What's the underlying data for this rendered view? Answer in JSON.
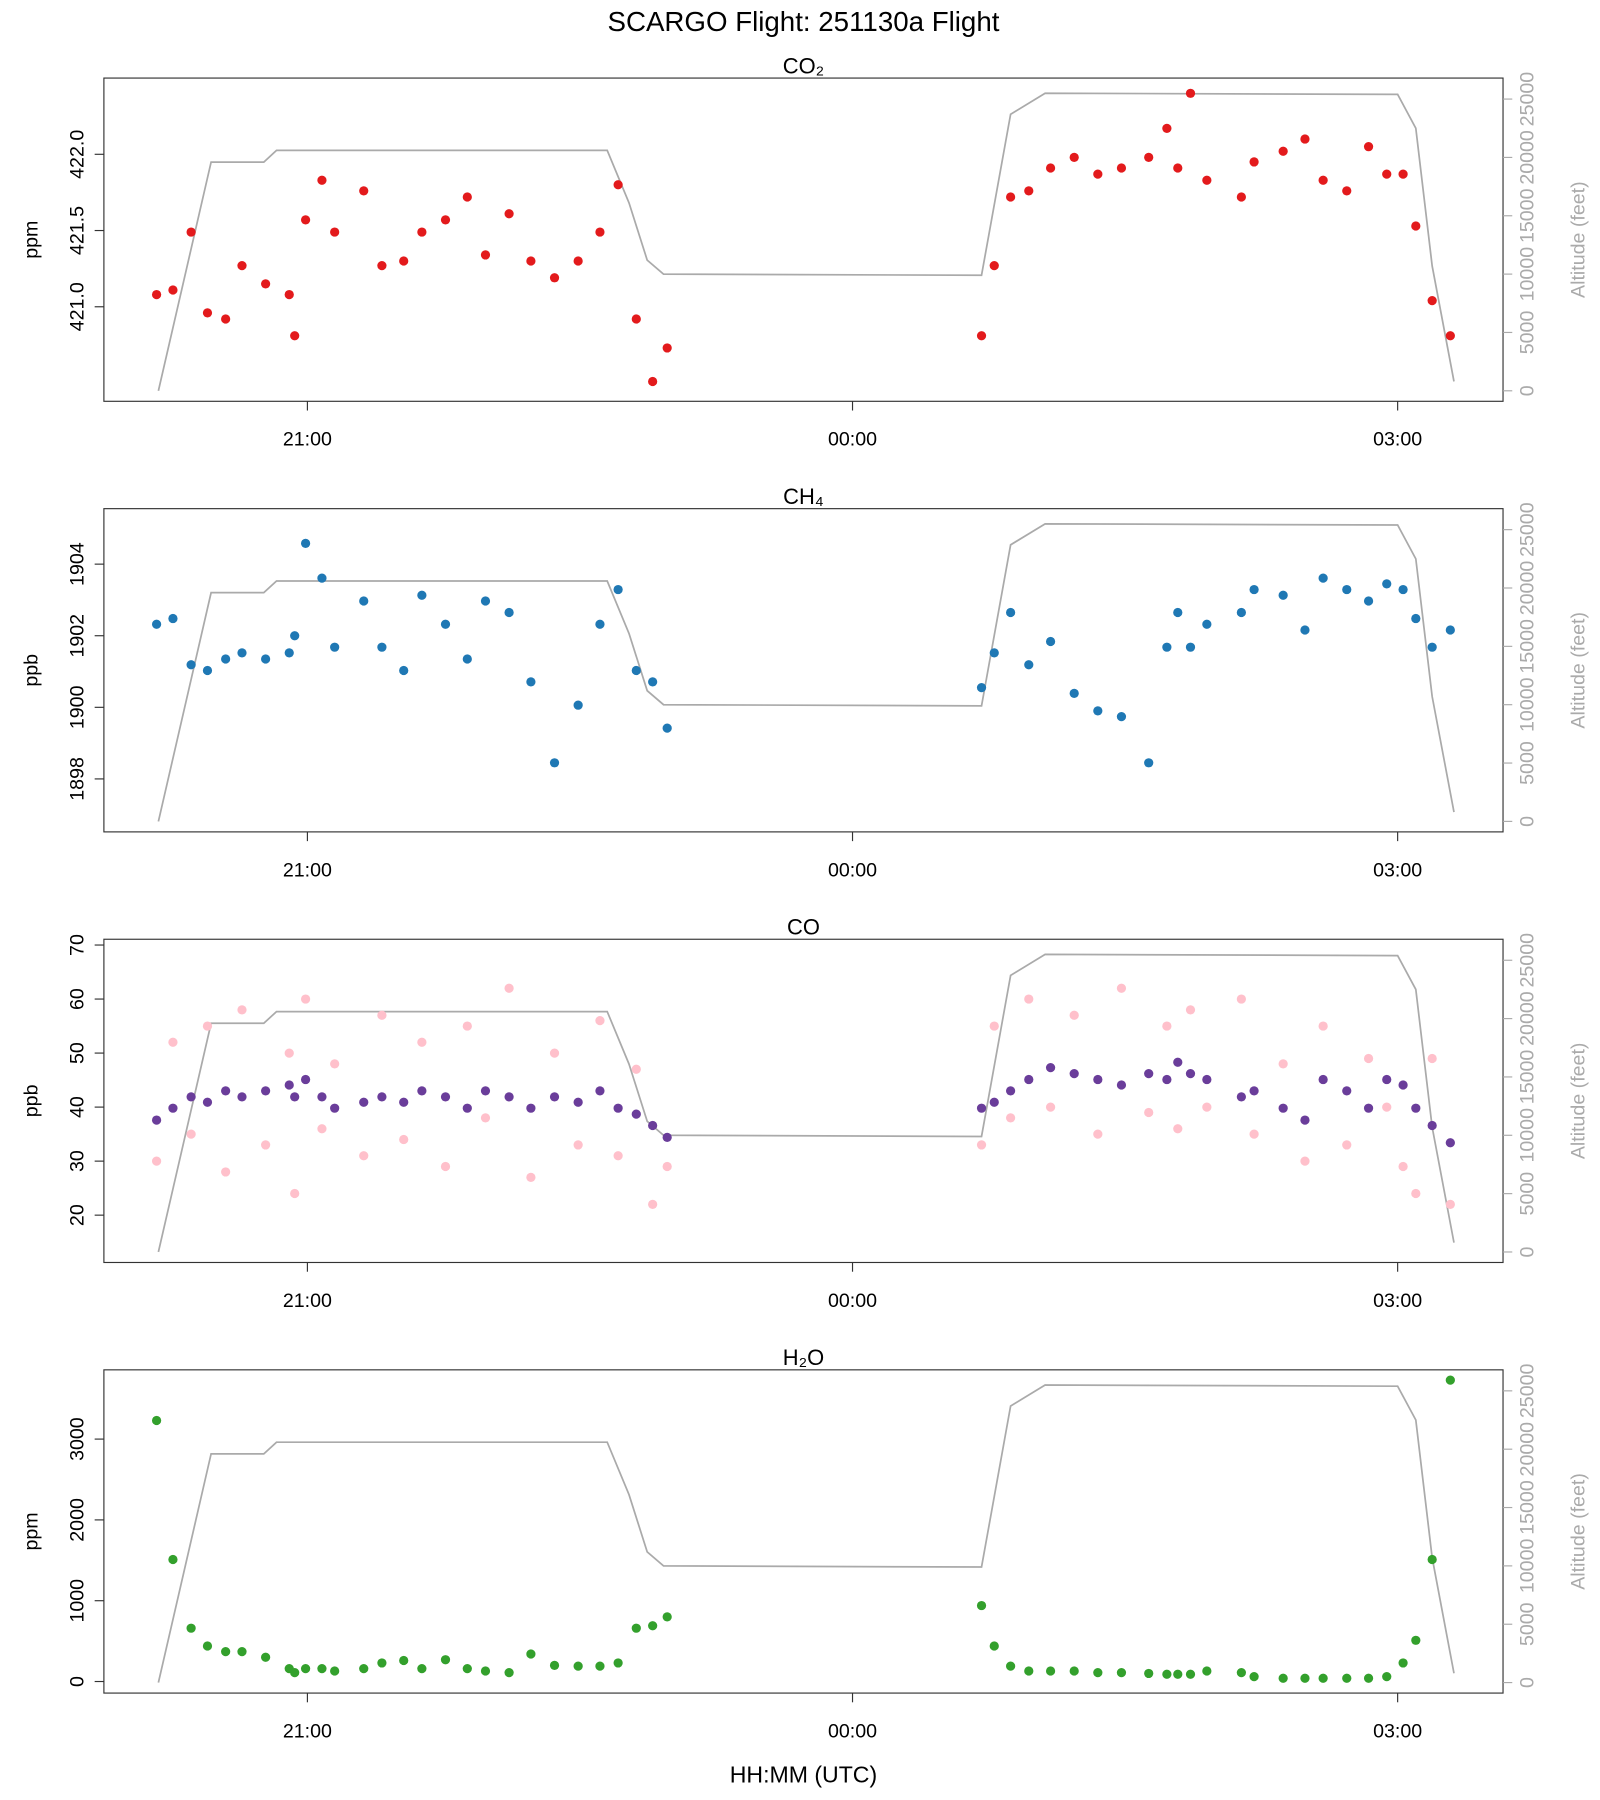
{
  "title": "SCARGO Flight: 251130a  Flight",
  "xlabel": "HH:MM (UTC)",
  "chart_data": [
    {
      "type": "scatter",
      "title": "CO₂",
      "ylabel": "ppm",
      "y2label": "Altitude (feet)",
      "xlim": [
        19.88,
        27.58
      ],
      "xticks": [
        {
          "value": 21,
          "label": "21:00"
        },
        {
          "value": 24,
          "label": "00:00"
        },
        {
          "value": 27,
          "label": "03:00"
        }
      ],
      "ylim": [
        420.38,
        422.5
      ],
      "yticks": [
        {
          "value": 421,
          "label": "421.0"
        },
        421.5,
        {
          "value": 422,
          "label": "422.0"
        }
      ],
      "y2lim": [
        -900,
        26800
      ],
      "y2ticks": [
        0,
        5000,
        10000,
        15000,
        20000,
        25000
      ],
      "x": [
        20.17,
        20.26,
        20.36,
        20.45,
        20.55,
        20.64,
        20.77,
        20.9,
        20.93,
        20.99,
        21.08,
        21.15,
        21.31,
        21.41,
        21.53,
        21.63,
        21.76,
        21.88,
        21.98,
        22.11,
        22.23,
        22.36,
        22.49,
        22.61,
        22.71,
        22.81,
        22.9,
        22.98,
        24.71,
        24.78,
        24.87,
        24.97,
        25.09,
        25.22,
        25.35,
        25.48,
        25.63,
        25.73,
        25.79,
        25.86,
        25.95,
        26.14,
        26.21,
        26.37,
        26.49,
        26.59,
        26.72,
        26.84,
        26.94,
        27.03,
        27.1,
        27.19,
        27.29
      ],
      "series": [
        {
          "axis": "y2",
          "color": "#aaaaaa",
          "x": [
            20.18,
            20.47,
            20.76,
            20.83,
            22.65,
            22.77,
            22.87,
            22.96,
            24.71,
            24.87,
            25.06,
            27.0,
            27.1,
            27.19,
            27.31
          ],
          "values": [
            0,
            19600,
            19600,
            20600,
            20600,
            16100,
            11200,
            10000,
            9900,
            23700,
            25500,
            25400,
            22500,
            10700,
            800
          ]
        },
        {
          "color": "#e31a1c",
          "values": [
            421.08,
            421.11,
            421.49,
            420.96,
            420.92,
            421.27,
            421.15,
            421.08,
            420.81,
            421.57,
            421.83,
            421.49,
            421.76,
            421.27,
            421.3,
            421.49,
            421.57,
            421.72,
            421.34,
            421.61,
            421.3,
            421.19,
            421.3,
            421.49,
            421.8,
            420.92,
            420.51,
            420.73,
            420.81,
            421.27,
            421.72,
            421.76,
            421.91,
            421.98,
            421.87,
            421.91,
            421.98,
            422.17,
            421.91,
            422.4,
            421.83,
            421.72,
            421.95,
            422.02,
            422.1,
            421.83,
            421.76,
            422.05,
            421.87,
            421.87,
            421.53,
            421.04,
            420.81
          ]
        }
      ]
    },
    {
      "type": "scatter",
      "title": "CH₄",
      "ylabel": "ppb",
      "y2label": "Altitude (feet)",
      "xlim": [
        19.88,
        27.58
      ],
      "xticks": [
        {
          "value": 21,
          "label": "21:00"
        },
        {
          "value": 24,
          "label": "00:00"
        },
        {
          "value": 27,
          "label": "03:00"
        }
      ],
      "ylim": [
        1896.52,
        1905.55
      ],
      "yticks": [
        1898,
        1900,
        1902,
        1904
      ],
      "y2lim": [
        -900,
        26800
      ],
      "y2ticks": [
        0,
        5000,
        10000,
        15000,
        20000,
        25000
      ],
      "x": [
        20.17,
        20.26,
        20.36,
        20.45,
        20.55,
        20.64,
        20.77,
        20.9,
        20.93,
        20.99,
        21.08,
        21.15,
        21.31,
        21.41,
        21.53,
        21.63,
        21.76,
        21.88,
        21.98,
        22.11,
        22.23,
        22.36,
        22.49,
        22.61,
        22.71,
        22.81,
        22.9,
        22.98,
        24.71,
        24.78,
        24.87,
        24.97,
        25.09,
        25.22,
        25.35,
        25.48,
        25.63,
        25.73,
        25.79,
        25.86,
        25.95,
        26.14,
        26.21,
        26.37,
        26.49,
        26.59,
        26.72,
        26.84,
        26.94,
        27.03,
        27.1,
        27.19,
        27.29
      ],
      "series": [
        {
          "axis": "y2",
          "color": "#aaaaaa",
          "x": [
            20.18,
            20.47,
            20.76,
            20.83,
            22.65,
            22.77,
            22.87,
            22.96,
            24.71,
            24.87,
            25.06,
            27.0,
            27.1,
            27.19,
            27.31
          ],
          "values": [
            0,
            19600,
            19600,
            20600,
            20600,
            16100,
            11200,
            10000,
            9900,
            23700,
            25500,
            25400,
            22500,
            10700,
            800
          ]
        },
        {
          "color": "#1f78b4",
          "values": [
            1902.32,
            1902.48,
            1901.19,
            1901.03,
            1901.35,
            1901.52,
            1901.35,
            1901.52,
            1902.0,
            1904.58,
            1903.61,
            1901.68,
            1902.97,
            1901.68,
            1901.03,
            1903.13,
            1902.32,
            1901.35,
            1902.97,
            1902.65,
            1900.71,
            1898.45,
            1900.06,
            1902.32,
            1903.29,
            1901.03,
            1900.71,
            1899.42,
            1900.55,
            1901.52,
            1902.65,
            1901.19,
            1901.84,
            1900.39,
            1899.9,
            1899.74,
            1898.45,
            1901.68,
            1902.65,
            1901.68,
            1902.32,
            1902.65,
            1903.29,
            1903.13,
            1902.16,
            1903.61,
            1903.29,
            1902.97,
            1903.45,
            1903.29,
            1902.48,
            1901.68,
            1902.16
          ]
        }
      ]
    },
    {
      "type": "scatter",
      "title": "CO",
      "ylabel": "ppb",
      "y2label": "Altitude (feet)",
      "xlim": [
        19.88,
        27.58
      ],
      "xticks": [
        {
          "value": 21,
          "label": "21:00"
        },
        {
          "value": 24,
          "label": "00:00"
        },
        {
          "value": 27,
          "label": "03:00"
        }
      ],
      "ylim": [
        11.24,
        71.07
      ],
      "yticks": [
        20,
        30,
        40,
        50,
        60,
        70
      ],
      "y2lim": [
        -900,
        26800
      ],
      "y2ticks": [
        0,
        5000,
        10000,
        15000,
        20000,
        25000
      ],
      "x": [
        20.17,
        20.26,
        20.36,
        20.45,
        20.55,
        20.64,
        20.77,
        20.9,
        20.93,
        20.99,
        21.08,
        21.15,
        21.31,
        21.41,
        21.53,
        21.63,
        21.76,
        21.88,
        21.98,
        22.11,
        22.23,
        22.36,
        22.49,
        22.61,
        22.71,
        22.81,
        22.9,
        22.98,
        24.71,
        24.78,
        24.87,
        24.97,
        25.09,
        25.22,
        25.35,
        25.48,
        25.63,
        25.73,
        25.79,
        25.86,
        25.95,
        26.14,
        26.21,
        26.37,
        26.49,
        26.59,
        26.72,
        26.84,
        26.94,
        27.03,
        27.1,
        27.19,
        27.29
      ],
      "series": [
        {
          "axis": "y2",
          "color": "#aaaaaa",
          "x": [
            20.18,
            20.47,
            20.76,
            20.83,
            22.65,
            22.77,
            22.87,
            22.96,
            24.71,
            24.87,
            25.06,
            27.0,
            27.1,
            27.19,
            27.31
          ],
          "values": [
            0,
            19600,
            19600,
            20600,
            20600,
            16100,
            11200,
            10000,
            9900,
            23700,
            25500,
            25400,
            22500,
            10700,
            800
          ]
        },
        {
          "color": "#ffc0cb",
          "values": [
            30,
            52,
            35,
            55,
            28,
            58,
            33,
            50,
            24,
            60,
            36,
            48,
            31,
            57,
            34,
            52,
            29,
            55,
            38,
            62,
            27,
            50,
            33,
            56,
            31,
            47,
            22,
            29,
            33,
            55,
            38,
            60,
            40,
            57,
            35,
            62,
            39,
            55,
            36,
            58,
            40,
            60,
            35,
            48,
            30,
            55,
            33,
            49,
            40,
            29,
            24,
            49,
            22
          ]
        },
        {
          "color": "#6a3d9a",
          "values": [
            37.6,
            39.8,
            41.9,
            40.9,
            43,
            41.9,
            43,
            44.1,
            41.9,
            45.1,
            41.9,
            39.8,
            40.9,
            41.9,
            40.9,
            43,
            41.9,
            39.8,
            43,
            41.9,
            39.8,
            41.9,
            40.9,
            43,
            39.8,
            38.7,
            36.6,
            34.4,
            39.8,
            40.9,
            43,
            45.1,
            47.3,
            46.2,
            45.1,
            44.1,
            46.2,
            45.1,
            48.3,
            46.2,
            45.1,
            41.9,
            43,
            39.8,
            37.6,
            45.1,
            43,
            39.8,
            45.1,
            44.1,
            39.8,
            36.6,
            33.4
          ]
        }
      ]
    },
    {
      "type": "scatter",
      "title": "H₂O",
      "ylabel": "ppm",
      "y2label": "Altitude (feet)",
      "xlim": [
        19.88,
        27.58
      ],
      "xticks": [
        {
          "value": 21,
          "label": "21:00"
        },
        {
          "value": 24,
          "label": "00:00"
        },
        {
          "value": 27,
          "label": "03:00"
        }
      ],
      "ylim": [
        -143,
        3857
      ],
      "yticks": [
        0,
        1000,
        2000,
        3000
      ],
      "y2lim": [
        -900,
        26800
      ],
      "y2ticks": [
        0,
        5000,
        10000,
        15000,
        20000,
        25000
      ],
      "x": [
        20.17,
        20.26,
        20.36,
        20.45,
        20.55,
        20.64,
        20.77,
        20.9,
        20.93,
        20.99,
        21.08,
        21.15,
        21.31,
        21.41,
        21.53,
        21.63,
        21.76,
        21.88,
        21.98,
        22.11,
        22.23,
        22.36,
        22.49,
        22.61,
        22.71,
        22.81,
        22.9,
        22.98,
        24.71,
        24.78,
        24.87,
        24.97,
        25.09,
        25.22,
        25.35,
        25.48,
        25.63,
        25.73,
        25.79,
        25.86,
        25.95,
        26.14,
        26.21,
        26.37,
        26.49,
        26.59,
        26.72,
        26.84,
        26.94,
        27.03,
        27.1,
        27.19,
        27.29
      ],
      "series": [
        {
          "axis": "y2",
          "color": "#aaaaaa",
          "x": [
            20.18,
            20.47,
            20.76,
            20.83,
            22.65,
            22.77,
            22.87,
            22.96,
            24.71,
            24.87,
            25.06,
            27.0,
            27.1,
            27.19,
            27.31
          ],
          "values": [
            0,
            19600,
            19600,
            20600,
            20600,
            16100,
            11200,
            10000,
            9900,
            23700,
            25500,
            25400,
            22500,
            10700,
            800
          ]
        },
        {
          "color": "#33a02c",
          "values": [
            3230,
            1510,
            660,
            440,
            370,
            370,
            300,
            160,
            110,
            160,
            160,
            130,
            160,
            230,
            260,
            160,
            270,
            160,
            130,
            110,
            340,
            200,
            190,
            190,
            230,
            660,
            690,
            800,
            940,
            440,
            190,
            130,
            130,
            130,
            110,
            110,
            100,
            90,
            90,
            90,
            130,
            110,
            60,
            40,
            40,
            40,
            40,
            40,
            60,
            230,
            510,
            1510,
            3730
          ]
        }
      ]
    }
  ]
}
